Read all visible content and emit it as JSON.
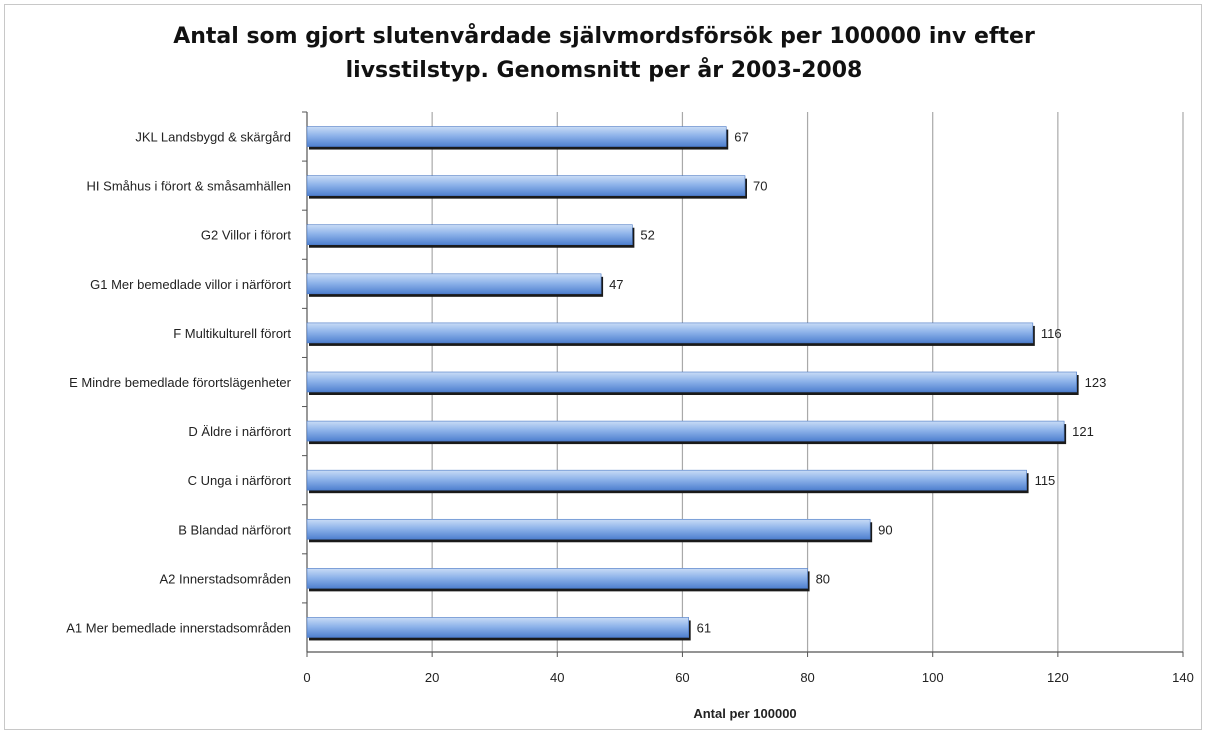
{
  "chart_data": {
    "type": "bar",
    "orientation": "horizontal",
    "title_line1": "Antal som gjort slutenvårdade självmordsförsök per 100000 inv efter",
    "title_line2": "livsstilstyp. Genomsnitt per år 2003-2008",
    "xlabel": "Antal per 100000",
    "ylabel": "",
    "xlim": [
      0,
      140
    ],
    "xticks": [
      "0",
      "20",
      "40",
      "60",
      "80",
      "100",
      "120",
      "140"
    ],
    "grid": true,
    "legend": "none",
    "bar_color": "#6f9fe0",
    "categories": [
      "JKL Landsbygd & skärgård",
      "HI Småhus i förort & småsamhällen",
      "G2 Villor i förort",
      "G1 Mer bemedlade villor i närförort",
      "F Multikulturell förort",
      "E Mindre bemedlade förortslägenheter",
      "D Äldre i närförort",
      "C Unga i närförort",
      "B Blandad närförort",
      "A2 Innerstadsområden",
      "A1 Mer bemedlade innerstadsområden"
    ],
    "values": [
      67,
      70,
      52,
      47,
      116,
      123,
      121,
      115,
      90,
      80,
      61
    ],
    "value_labels": [
      "67",
      "70",
      "52",
      "47",
      "116",
      "123",
      "121",
      "115",
      "90",
      "80",
      "61"
    ]
  }
}
